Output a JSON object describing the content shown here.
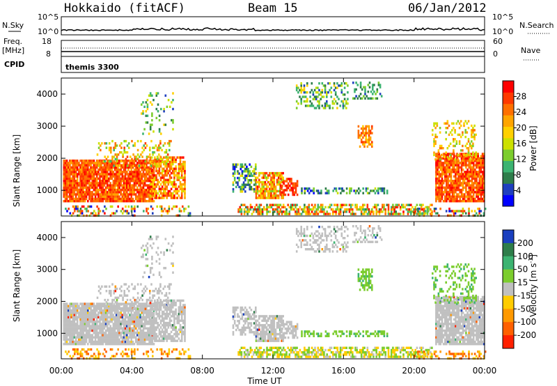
{
  "header": {
    "station": "Hokkaido (fitACF)",
    "beam": "Beam 15",
    "date": "06/Jan/2012"
  },
  "noise_panel": {
    "left_label": "N.Sky",
    "right_label": "N.Search",
    "left_ticks": [
      "10^5",
      "10^0"
    ],
    "right_ticks": [
      "10^5",
      "10^0"
    ]
  },
  "freq_panel": {
    "left_label_1": "Freq.",
    "left_label_2": "[MHz]",
    "right_label": "Nave",
    "left_ticks": [
      "18",
      "8"
    ],
    "right_ticks": [
      "60",
      "0"
    ]
  },
  "cpid_panel": {
    "label": "CPID",
    "value": "themis 3300"
  },
  "chart_data": [
    {
      "type": "heatmap",
      "name": "power",
      "ylabel": "Slant Range [km]",
      "yticks": [
        "1000",
        "2000",
        "3000",
        "4000"
      ],
      "ylim": [
        200,
        4500
      ],
      "colorbar": {
        "label": "Power [dB]",
        "ticks": [
          "4",
          "8",
          "12",
          "16",
          "20",
          "24",
          "28"
        ],
        "colors": [
          "#0000ff",
          "#1f3fbf",
          "#2e7d4a",
          "#3cb371",
          "#7ccd2e",
          "#cce000",
          "#ffd000",
          "#ffa500",
          "#ff7000",
          "#ff3a00",
          "#ff0000"
        ]
      }
    },
    {
      "type": "heatmap",
      "name": "velocity",
      "ylabel": "Slant Range [km]",
      "yticks": [
        "1000",
        "2000",
        "3000",
        "4000"
      ],
      "ylim": [
        200,
        4500
      ],
      "xlabel": "Time UT",
      "xticks": [
        "00:00",
        "04:00",
        "08:00",
        "12:00",
        "16:00",
        "20:00",
        "00:00"
      ],
      "colorbar": {
        "label": "Velocity [m s",
        "label_sup": "-1",
        "label_end": "]",
        "ticks": [
          "200",
          "100",
          "50",
          "15",
          "-15",
          "-50",
          "-100",
          "-200"
        ],
        "colors": [
          "#1a3fbf",
          "#2e7d4a",
          "#3cb371",
          "#7ccd2e",
          "#c0c0c0",
          "#ffcc00",
          "#ff9900",
          "#ff6000",
          "#ff2000"
        ]
      }
    }
  ]
}
